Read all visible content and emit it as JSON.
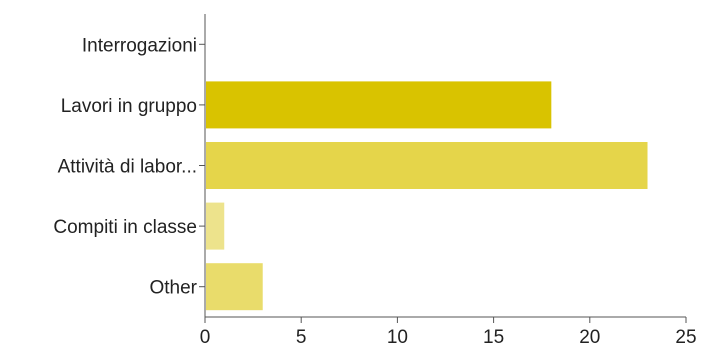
{
  "chart_data": {
    "type": "bar",
    "orientation": "horizontal",
    "title": "",
    "xlabel": "",
    "ylabel": "",
    "categories": [
      "Interrogazioni",
      "Lavori in gruppo",
      "Attività di labor...",
      "Compiti in classe",
      "Other"
    ],
    "values": [
      0,
      18,
      23,
      1,
      3
    ],
    "colors": [
      "#d9c300",
      "#d9c300",
      "#e5d54a",
      "#ede38c",
      "#e9dc6b"
    ],
    "xlim": [
      0,
      25
    ],
    "xticks": [
      0,
      5,
      10,
      15,
      20,
      25
    ],
    "grid": false,
    "legend": "none"
  }
}
